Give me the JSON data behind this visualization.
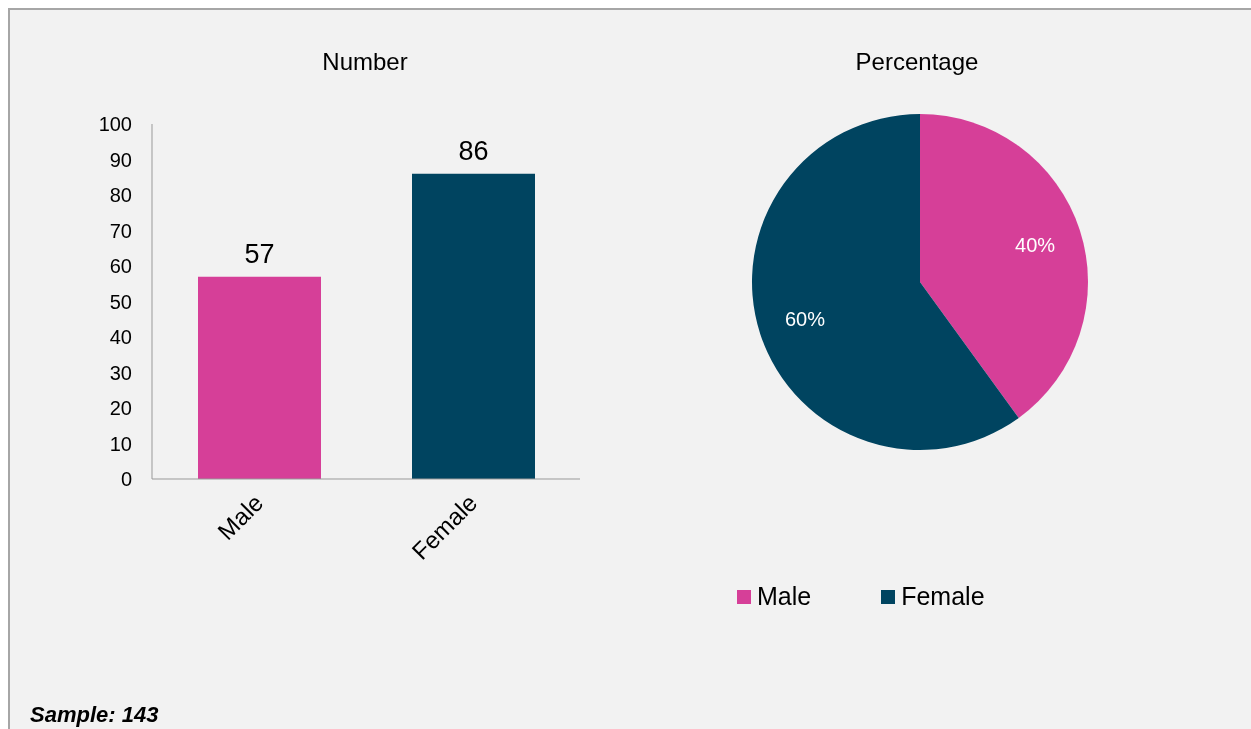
{
  "chart_data": [
    {
      "type": "bar",
      "title": "Number",
      "categories": [
        "Male",
        "Female"
      ],
      "values": [
        57,
        86
      ],
      "colors": [
        "#d63f98",
        "#004460"
      ],
      "ylim": [
        0,
        100
      ],
      "yticks": [
        0,
        10,
        20,
        30,
        40,
        50,
        60,
        70,
        80,
        90,
        100
      ],
      "data_labels": true,
      "annotations": [
        "Sample: 143"
      ]
    },
    {
      "type": "pie",
      "title": "Percentage",
      "categories": [
        "Male",
        "Female"
      ],
      "values": [
        40,
        60
      ],
      "value_labels": [
        "40%",
        "60%"
      ],
      "colors": [
        "#d63f98",
        "#004460"
      ],
      "legend": "bottom"
    }
  ]
}
